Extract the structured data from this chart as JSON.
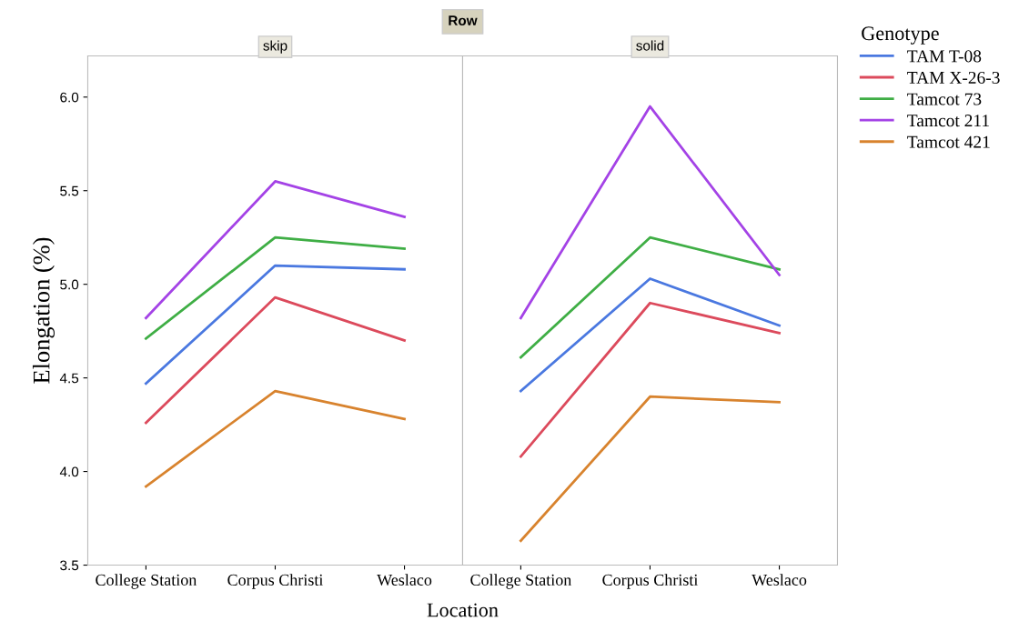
{
  "chart_data": [
    {
      "type": "line",
      "title": "skip",
      "annotations": [
        "Row"
      ],
      "xlabel": "Location",
      "ylabel": "Elongation (%)",
      "legend_title": "Genotype",
      "legend": "right",
      "grid": false,
      "categories": [
        "College Station",
        "Corpus Christi",
        "Weslaco"
      ],
      "ylim": [
        3.5,
        6.22
      ],
      "yticks": [
        {
          "value": 3.5,
          "label": "3.5"
        },
        {
          "value": 4.0,
          "label": "4.0"
        },
        {
          "value": 4.5,
          "label": "4.5"
        },
        {
          "value": 5.0,
          "label": "5.0"
        },
        {
          "value": 5.5,
          "label": "5.5"
        },
        {
          "value": 6.0,
          "label": "6.0"
        }
      ],
      "series": [
        {
          "name": "TAM T-08",
          "color": "#4a78e0",
          "values": [
            4.47,
            5.1,
            5.08
          ]
        },
        {
          "name": "TAM X-26-3",
          "color": "#dc4a5c",
          "values": [
            4.26,
            4.93,
            4.7
          ]
        },
        {
          "name": "Tamcot 73",
          "color": "#3fae45",
          "values": [
            4.71,
            5.25,
            5.19
          ]
        },
        {
          "name": "Tamcot 211",
          "color": "#a443e6",
          "values": [
            4.82,
            5.55,
            5.36
          ]
        },
        {
          "name": "Tamcot 421",
          "color": "#d8832e",
          "values": [
            3.92,
            4.43,
            4.28
          ]
        }
      ]
    },
    {
      "type": "line",
      "title": "solid",
      "tick_labels": "x",
      "grid": false,
      "categories": [
        "College Station",
        "Corpus Christi",
        "Weslaco"
      ],
      "ylim": [
        3.5,
        6.22
      ],
      "series": [
        {
          "color": "#4a78e0",
          "values": [
            4.43,
            5.03,
            4.78
          ]
        },
        {
          "color": "#dc4a5c",
          "values": [
            4.08,
            4.9,
            4.74
          ]
        },
        {
          "color": "#3fae45",
          "values": [
            4.61,
            5.25,
            5.08
          ]
        },
        {
          "color": "#a443e6",
          "values": [
            4.82,
            5.95,
            5.05
          ]
        },
        {
          "color": "#d8832e",
          "values": [
            3.63,
            4.4,
            4.37
          ]
        }
      ]
    }
  ]
}
